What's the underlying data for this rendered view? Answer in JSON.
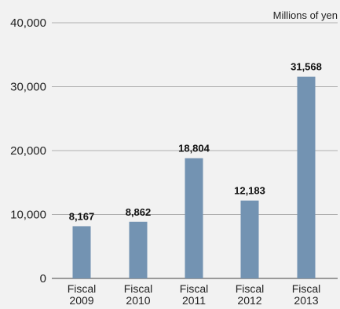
{
  "chart_data": {
    "type": "bar",
    "unit_label": "Millions of yen",
    "categories": [
      [
        "Fiscal",
        "2009"
      ],
      [
        "Fiscal",
        "2010"
      ],
      [
        "Fiscal",
        "2011"
      ],
      [
        "Fiscal",
        "2012"
      ],
      [
        "Fiscal",
        "2013"
      ]
    ],
    "values": [
      8167,
      8862,
      18804,
      12183,
      31568
    ],
    "value_labels": [
      "8,167",
      "8,862",
      "18,804",
      "12,183",
      "31,568"
    ],
    "yticks": [
      0,
      10000,
      20000,
      30000,
      40000
    ],
    "ytick_labels": [
      "0",
      "10,000",
      "20,000",
      "30,000",
      "40,000"
    ],
    "ylim": [
      0,
      40000
    ],
    "grid": true,
    "colors": {
      "bar": "#7393b2",
      "grid": "#9a9a9a",
      "axis": "#666666",
      "background": "#f2f2f2"
    }
  }
}
